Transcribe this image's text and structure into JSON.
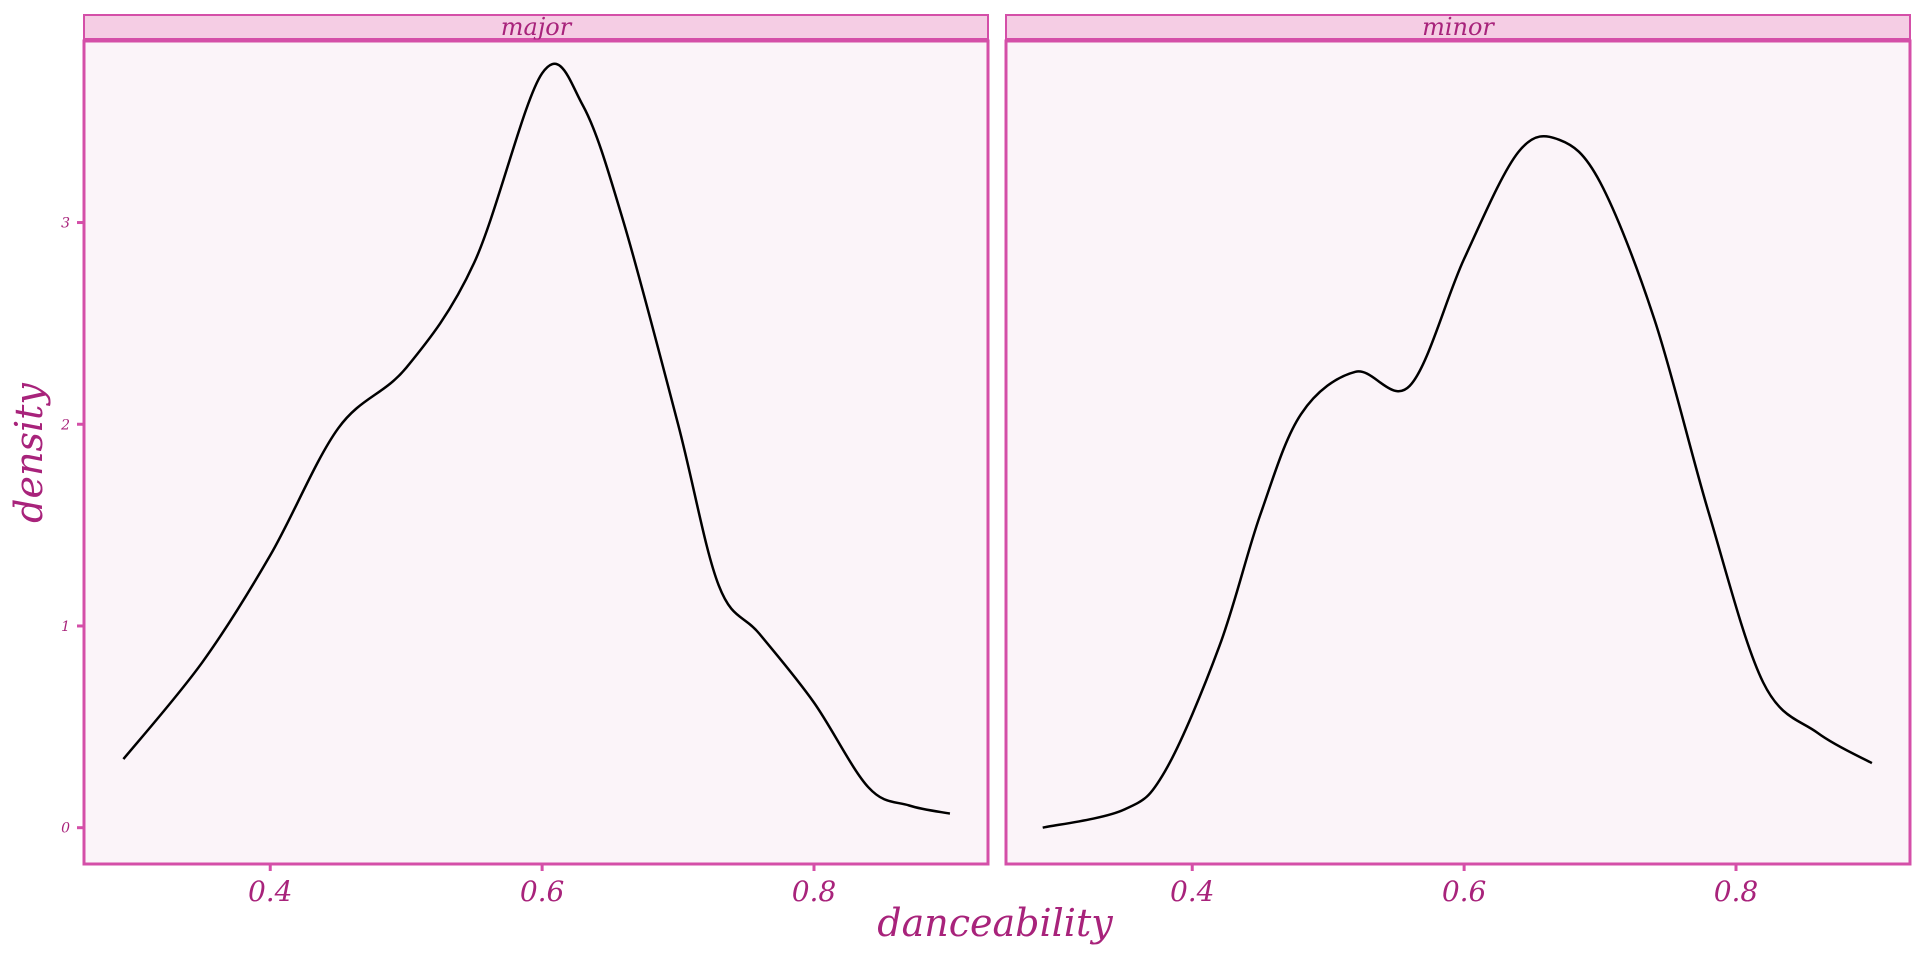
{
  "chart_data": {
    "type": "line",
    "subtype": "density-facet",
    "xlabel": "danceability",
    "ylabel": "density",
    "xlim": [
      0.263,
      0.928
    ],
    "ylim": [
      -0.18,
      3.9
    ],
    "x_ticks": [
      0.4,
      0.6,
      0.8
    ],
    "x_tick_labels": [
      "0.4",
      "0.6",
      "0.8"
    ],
    "y_ticks": [
      0,
      1,
      2,
      3
    ],
    "y_tick_labels": [
      "0",
      "1",
      "2",
      "3"
    ],
    "grid": false,
    "colors": {
      "panel_bg": "#fbf4f9",
      "strip_bg": "#f5cde4",
      "border": "#d44fa8",
      "text": "#a8237b",
      "line": "#000000"
    },
    "facets": [
      {
        "label": "major",
        "x": [
          0.292,
          0.35,
          0.4,
          0.45,
          0.5,
          0.55,
          0.6,
          0.63,
          0.66,
          0.7,
          0.73,
          0.76,
          0.8,
          0.84,
          0.87,
          0.9
        ],
        "y": [
          0.34,
          0.82,
          1.35,
          1.98,
          2.28,
          2.8,
          3.74,
          3.58,
          3.0,
          2.0,
          1.2,
          0.96,
          0.62,
          0.2,
          0.11,
          0.07
        ]
      },
      {
        "label": "minor",
        "x": [
          0.29,
          0.35,
          0.38,
          0.42,
          0.45,
          0.48,
          0.52,
          0.56,
          0.6,
          0.64,
          0.67,
          0.7,
          0.74,
          0.78,
          0.82,
          0.86,
          0.9
        ],
        "y": [
          0.0,
          0.09,
          0.28,
          0.9,
          1.55,
          2.05,
          2.26,
          2.19,
          2.82,
          3.35,
          3.41,
          3.2,
          2.52,
          1.56,
          0.72,
          0.47,
          0.32
        ]
      }
    ]
  }
}
